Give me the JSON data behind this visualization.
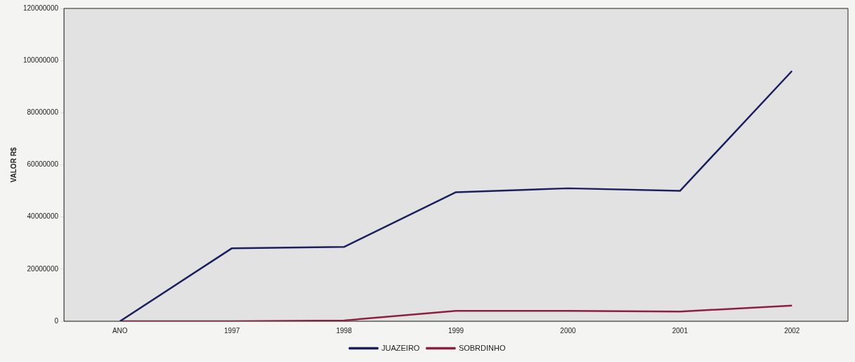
{
  "chart_data": {
    "type": "line",
    "ylabel": "VALOR R$",
    "categories": [
      "ANO",
      "1997",
      "1998",
      "1999",
      "2000",
      "2001",
      "2002"
    ],
    "series": [
      {
        "name": "JUAZEIRO",
        "color": "#1c1f5e",
        "values": [
          0,
          28000000,
          28500000,
          49500000,
          51000000,
          50000000,
          96000000
        ]
      },
      {
        "name": "SOBRDINHO",
        "color": "#8b2040",
        "values": [
          0,
          0,
          300000,
          4000000,
          4000000,
          3700000,
          6000000
        ]
      }
    ],
    "ylim": [
      0,
      120000000
    ],
    "yticks": [
      0,
      20000000,
      40000000,
      60000000,
      80000000,
      100000000,
      120000000
    ],
    "grid": false,
    "legend": "bottom",
    "marker": "none",
    "line_style": "solid"
  }
}
